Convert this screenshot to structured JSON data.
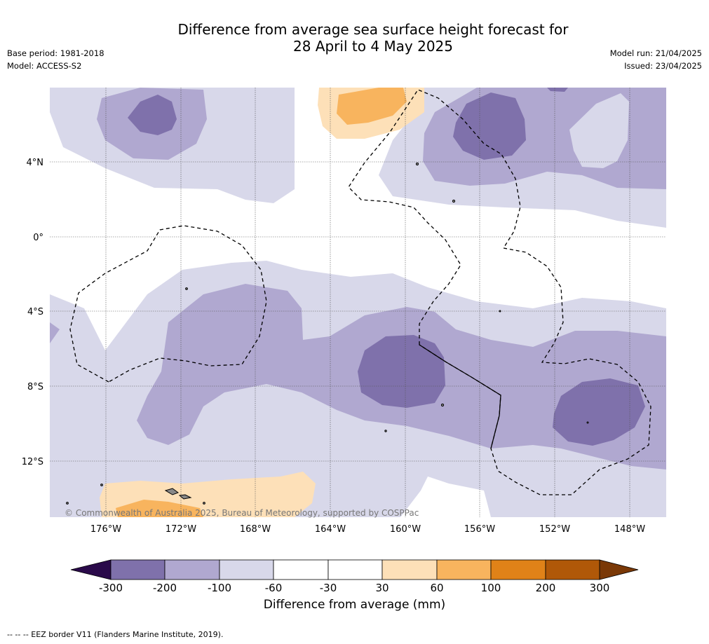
{
  "header": {
    "title": "Difference from average sea surface height forecast for\n28 April to 4 May 2025",
    "base_period": "Base period: 1981-2018",
    "model": "Model: ACCESS-S2",
    "model_run": "Model run: 21/04/2025",
    "issued": "Issued: 23/04/2025"
  },
  "map": {
    "lat_ticks": [
      "4°N",
      "0°",
      "4°S",
      "8°S",
      "12°S"
    ],
    "lon_ticks": [
      "176°W",
      "172°W",
      "168°W",
      "164°W",
      "160°W",
      "156°W",
      "152°W",
      "148°W"
    ],
    "copyright": "© Commonwealth of Australia 2025, Bureau of Meteorology, supported by COSPPac",
    "legend_colors": {
      "neg_300_200": "#4e1f7a",
      "neg_200_100": "#7f71ab",
      "neg_100_60": "#b0a8d0",
      "neg_60_30": "#d8d8ea",
      "neutral": "#ffffff",
      "pos_30_60": "#fde0b8",
      "pos_60_100": "#f8b45e",
      "pos_100_200": "#e08218",
      "pos_200_300": "#b05808"
    }
  },
  "colorbar": {
    "ticks": [
      "-300",
      "-200",
      "-100",
      "-60",
      "-30",
      "30",
      "60",
      "100",
      "200",
      "300"
    ],
    "label": "Difference from average (mm)"
  },
  "footnote": "--  --  -- EEZ border V11 (Flanders Marine Institute, 2019)."
}
